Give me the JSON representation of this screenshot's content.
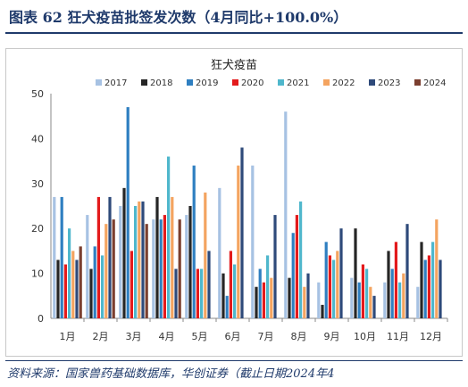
{
  "header": {
    "title": "图表 62  狂犬疫苗批签发次数（4月同比+100.0%）"
  },
  "footer": {
    "source": "资料来源：国家兽药基础数据库，华创证券（截止日期2024年4"
  },
  "colors": {
    "2017": "#a7c2e3",
    "2018": "#262626",
    "2019": "#2f7fc1",
    "2020": "#e31a1c",
    "2021": "#4fb7cc",
    "2022": "#f4a460",
    "2023": "#2e4a7a",
    "2024": "#7b3f2f"
  },
  "chart_data": {
    "type": "bar",
    "title": "狂犬疫苗",
    "categories": [
      "1月",
      "2月",
      "3月",
      "4月",
      "5月",
      "6月",
      "7月",
      "8月",
      "9月",
      "10月",
      "11月",
      "12月"
    ],
    "ylim": [
      0,
      50
    ],
    "yticks": [
      "0",
      "10",
      "20",
      "30",
      "40",
      "50"
    ],
    "legend_position": "top",
    "series": [
      {
        "name": "2017",
        "values": [
          27,
          23,
          25,
          22,
          23,
          29,
          34,
          46,
          8,
          9,
          8,
          7
        ]
      },
      {
        "name": "2018",
        "values": [
          13,
          11,
          29,
          27,
          25,
          10,
          7,
          9,
          3,
          20,
          15,
          17
        ]
      },
      {
        "name": "2019",
        "values": [
          27,
          16,
          47,
          22,
          34,
          5,
          11,
          19,
          17,
          8,
          11,
          13
        ]
      },
      {
        "name": "2020",
        "values": [
          12,
          27,
          15,
          23,
          11,
          15,
          8,
          23,
          14,
          12,
          17,
          14
        ]
      },
      {
        "name": "2021",
        "values": [
          20,
          14,
          25,
          36,
          11,
          12,
          14,
          26,
          13,
          11,
          8,
          17
        ]
      },
      {
        "name": "2022",
        "values": [
          15,
          21,
          26,
          27,
          28,
          34,
          9,
          7,
          15,
          7,
          10,
          22
        ]
      },
      {
        "name": "2023",
        "values": [
          13,
          27,
          26,
          11,
          15,
          38,
          23,
          10,
          20,
          5,
          21,
          13
        ]
      },
      {
        "name": "2024",
        "values": [
          16,
          22,
          21,
          22,
          null,
          null,
          null,
          null,
          null,
          null,
          null,
          null
        ]
      }
    ]
  }
}
